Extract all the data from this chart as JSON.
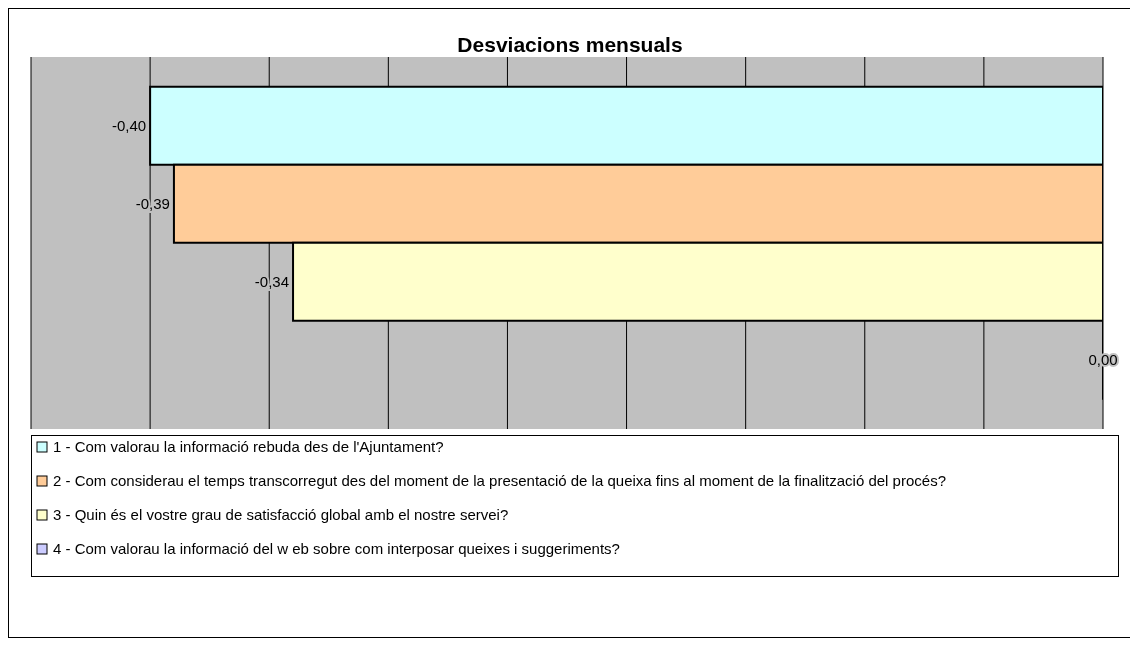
{
  "chart_data": {
    "type": "bar",
    "orientation": "horizontal",
    "title": "Desviacions mensuals",
    "categories": [
      null
    ],
    "xlim": [
      -0.45,
      0
    ],
    "grid": "x",
    "legend": "bottom",
    "tick_labels": false,
    "series": [
      {
        "name": "1 - Com valorau la informació rebuda des de l'Ajuntament?",
        "color": "#ccffff",
        "values": [
          -0.4
        ],
        "value_labels": [
          "-0,40"
        ]
      },
      {
        "name": "2 - Com considerau el temps transcorregut des del moment de la presentació de la queixa fins al moment de la finalització del procés?",
        "color": "#ffcc99",
        "values": [
          -0.39
        ],
        "value_labels": [
          "-0,39"
        ]
      },
      {
        "name": "3 - Quin és el vostre grau de satisfacció global amb el nostre servei?",
        "color": "#ffffcc",
        "values": [
          -0.34
        ],
        "value_labels": [
          "-0,34"
        ]
      },
      {
        "name": "4 - Com valorau la informació del w eb sobre com interposar queixes i suggeriments?",
        "color": "#ccccff",
        "values": [
          0
        ],
        "value_labels": [
          "0,00"
        ]
      }
    ]
  }
}
